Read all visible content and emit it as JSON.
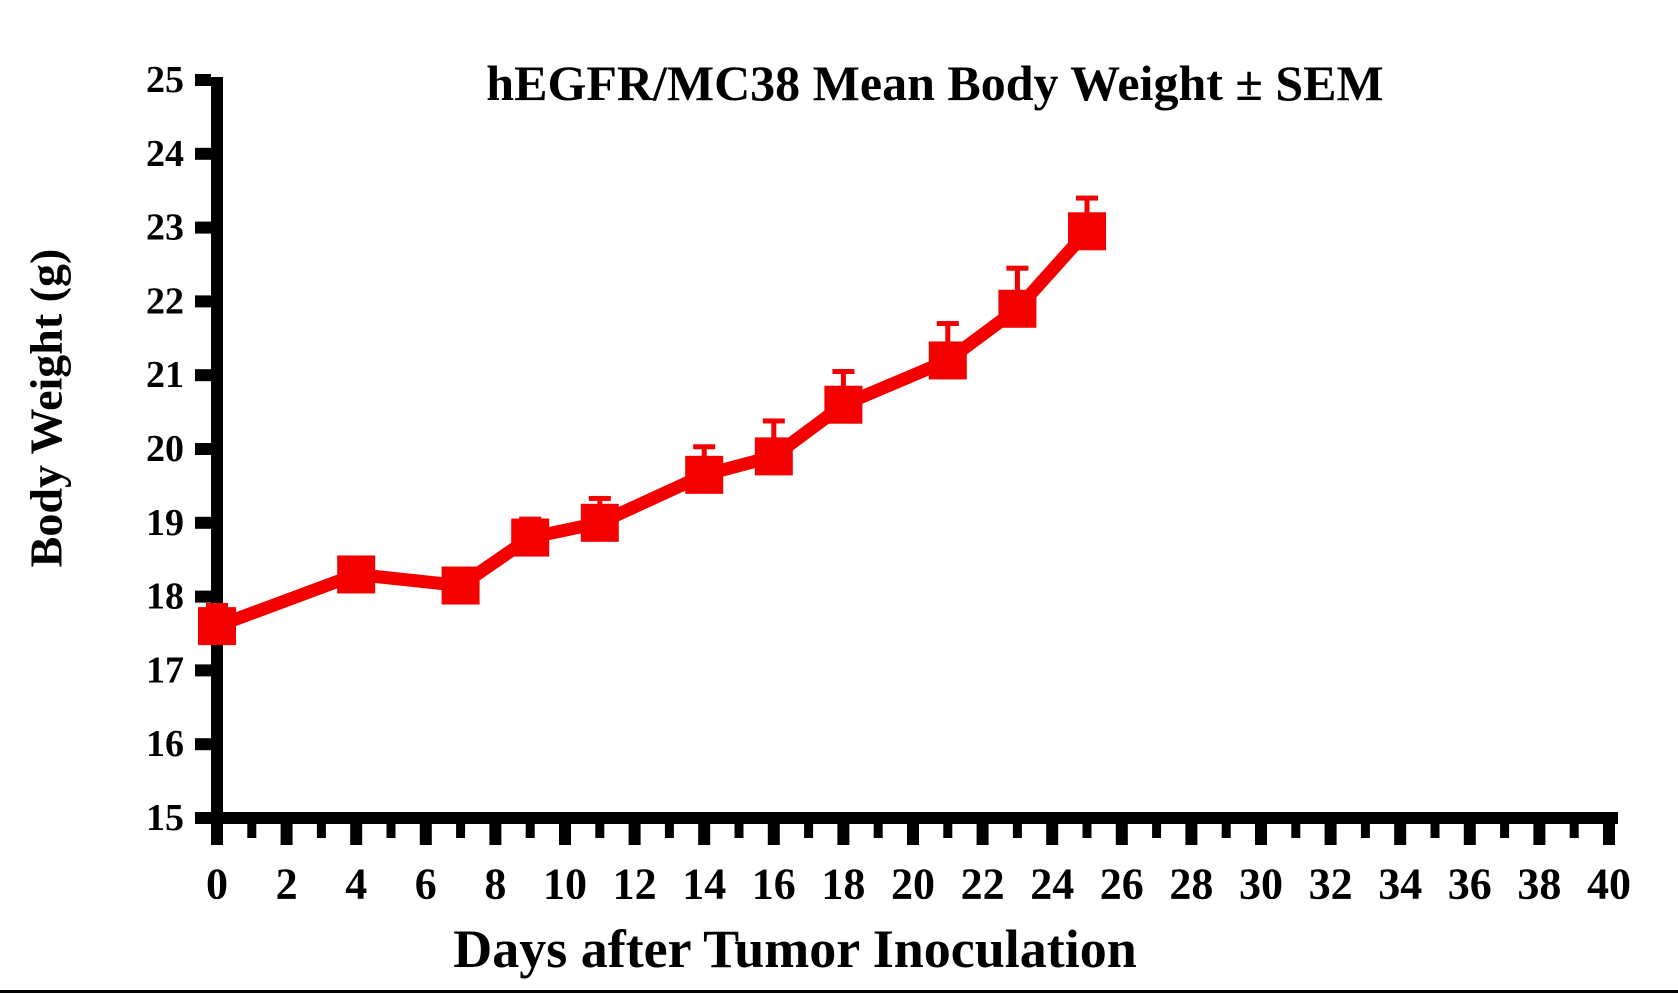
{
  "title": "hEGFR/MC38 Mean Body Weight ± SEM",
  "colors": {
    "series": "#f30000",
    "axis": "#000000",
    "background": "#ffffff"
  },
  "chart_data": {
    "type": "line",
    "title": "hEGFR/MC38 Mean Body Weight ± SEM",
    "xlabel": "Days after Tumor Inoculation",
    "ylabel": "Body Weight (g)",
    "xlim": [
      0,
      40
    ],
    "ylim": [
      15,
      25
    ],
    "grid": false,
    "legend_position": "none",
    "marker": "square",
    "error_bars": "upper-only",
    "x_tick_values": [
      0,
      2,
      4,
      6,
      8,
      10,
      12,
      14,
      16,
      18,
      20,
      22,
      24,
      26,
      28,
      30,
      32,
      34,
      36,
      38,
      40
    ],
    "x_tick_labels": [
      "0",
      "2",
      "4",
      "6",
      "8",
      "10",
      "12",
      "14",
      "16",
      "18",
      "20",
      "22",
      "24",
      "26",
      "28",
      "30",
      "32",
      "34",
      "36",
      "38",
      "40"
    ],
    "x_minor_tick_values": [
      1,
      3,
      5,
      7,
      9,
      11,
      13,
      15,
      17,
      19,
      21,
      23,
      25,
      27,
      29,
      31,
      33,
      35,
      37,
      39
    ],
    "y_tick_values": [
      15,
      16,
      17,
      18,
      19,
      20,
      21,
      22,
      23,
      24,
      25
    ],
    "y_tick_labels": [
      "15",
      "16",
      "17",
      "18",
      "19",
      "20",
      "21",
      "22",
      "23",
      "24",
      "25"
    ],
    "series": [
      {
        "name": "hEGFR/MC38 mean body weight",
        "color": "#f30000",
        "x": [
          0,
          4,
          7,
          9,
          11,
          14,
          16,
          18,
          21,
          23,
          25
        ],
        "y": [
          17.6,
          18.3,
          18.15,
          18.8,
          19.0,
          19.65,
          19.9,
          20.6,
          21.2,
          21.9,
          22.95
        ],
        "sem": [
          0.28,
          0,
          0,
          0.25,
          0.33,
          0.38,
          0.48,
          0.45,
          0.5,
          0.55,
          0.45
        ]
      }
    ]
  }
}
